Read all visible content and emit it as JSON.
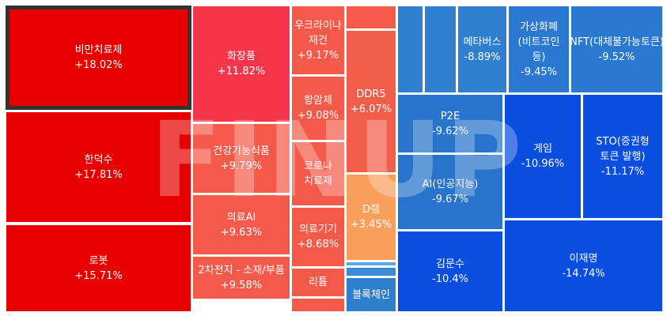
{
  "watermark": "FINUP",
  "chart_data": {
    "type": "treemap",
    "items": [
      {
        "label": "비만치료제",
        "value": "+18.02%",
        "change": 18.02,
        "color": "#e60000",
        "selected": true
      },
      {
        "label": "한덕수",
        "value": "+17.81%",
        "change": 17.81,
        "color": "#e60000"
      },
      {
        "label": "로봇",
        "value": "+15.71%",
        "change": 15.71,
        "color": "#e60000"
      },
      {
        "label": "화장품",
        "value": "+11.82%",
        "change": 11.82,
        "color": "#f5364a"
      },
      {
        "label": "건강기능식품",
        "value": "+9.79%",
        "change": 9.79,
        "color": "#f45a4a"
      },
      {
        "label": "의료AI",
        "value": "+9.63%",
        "change": 9.63,
        "color": "#f45a4a"
      },
      {
        "label": "2차전지 - 소재/부품",
        "value": "+9.58%",
        "change": 9.58,
        "color": "#f45a4a"
      },
      {
        "label": "우크라이나 재건",
        "value": "+9.17%",
        "change": 9.17,
        "color": "#f45a4a"
      },
      {
        "label": "항암제",
        "value": "+9.08%",
        "change": 9.08,
        "color": "#f45a4a"
      },
      {
        "label": "코로나 치료제",
        "value": "",
        "change": null,
        "color": "#f45a4a"
      },
      {
        "label": "의료기기",
        "value": "+8.68%",
        "change": 8.68,
        "color": "#f45a4a"
      },
      {
        "label": "리튬",
        "value": "",
        "change": null,
        "color": "#f45a4a"
      },
      {
        "label": "",
        "value": "",
        "change": null,
        "color": "#f45a4a"
      },
      {
        "label": "",
        "value": "",
        "change": null,
        "color": "#f45a4a"
      },
      {
        "label": "DDR5",
        "value": "+6.07%",
        "change": 6.07,
        "color": "#f25e4a"
      },
      {
        "label": "D램",
        "value": "+3.45%",
        "change": 3.45,
        "color": "#f99f5c"
      },
      {
        "label": "",
        "value": "",
        "change": null,
        "color": "#5aa8e6"
      },
      {
        "label": "",
        "value": "",
        "change": null,
        "color": "#3a8bd6"
      },
      {
        "label": "블록체인",
        "value": "",
        "change": null,
        "color": "#2e7fcc"
      },
      {
        "label": "",
        "value": "",
        "change": null,
        "color": "#2f7fd0"
      },
      {
        "label": "",
        "value": "",
        "change": null,
        "color": "#2f7fd0"
      },
      {
        "label": "메타버스",
        "value": "-8.89%",
        "change": -8.89,
        "color": "#2f7fd0"
      },
      {
        "label": "가상화폐(비트코인 등)",
        "value": "-9.45%",
        "change": -9.45,
        "color": "#2a78d0"
      },
      {
        "label": "NFT(대체불가능토큰)",
        "value": "-9.52%",
        "change": -9.52,
        "color": "#2a78d0"
      },
      {
        "label": "P2E",
        "value": "-9.62%",
        "change": -9.62,
        "color": "#2873cc"
      },
      {
        "label": "AI(인공지능)",
        "value": "-9.67%",
        "change": -9.67,
        "color": "#2873cc"
      },
      {
        "label": "게임",
        "value": "-10.96%",
        "change": -10.96,
        "color": "#0a4ee0"
      },
      {
        "label": "STO(증권형 토큰 발행)",
        "value": "-11.17%",
        "change": -11.17,
        "color": "#0a4ee0"
      },
      {
        "label": "김문수",
        "value": "-10.4%",
        "change": -10.4,
        "color": "#0a4ee0"
      },
      {
        "label": "이재명",
        "value": "-14.74%",
        "change": -14.74,
        "color": "#0a4ee0"
      }
    ]
  }
}
